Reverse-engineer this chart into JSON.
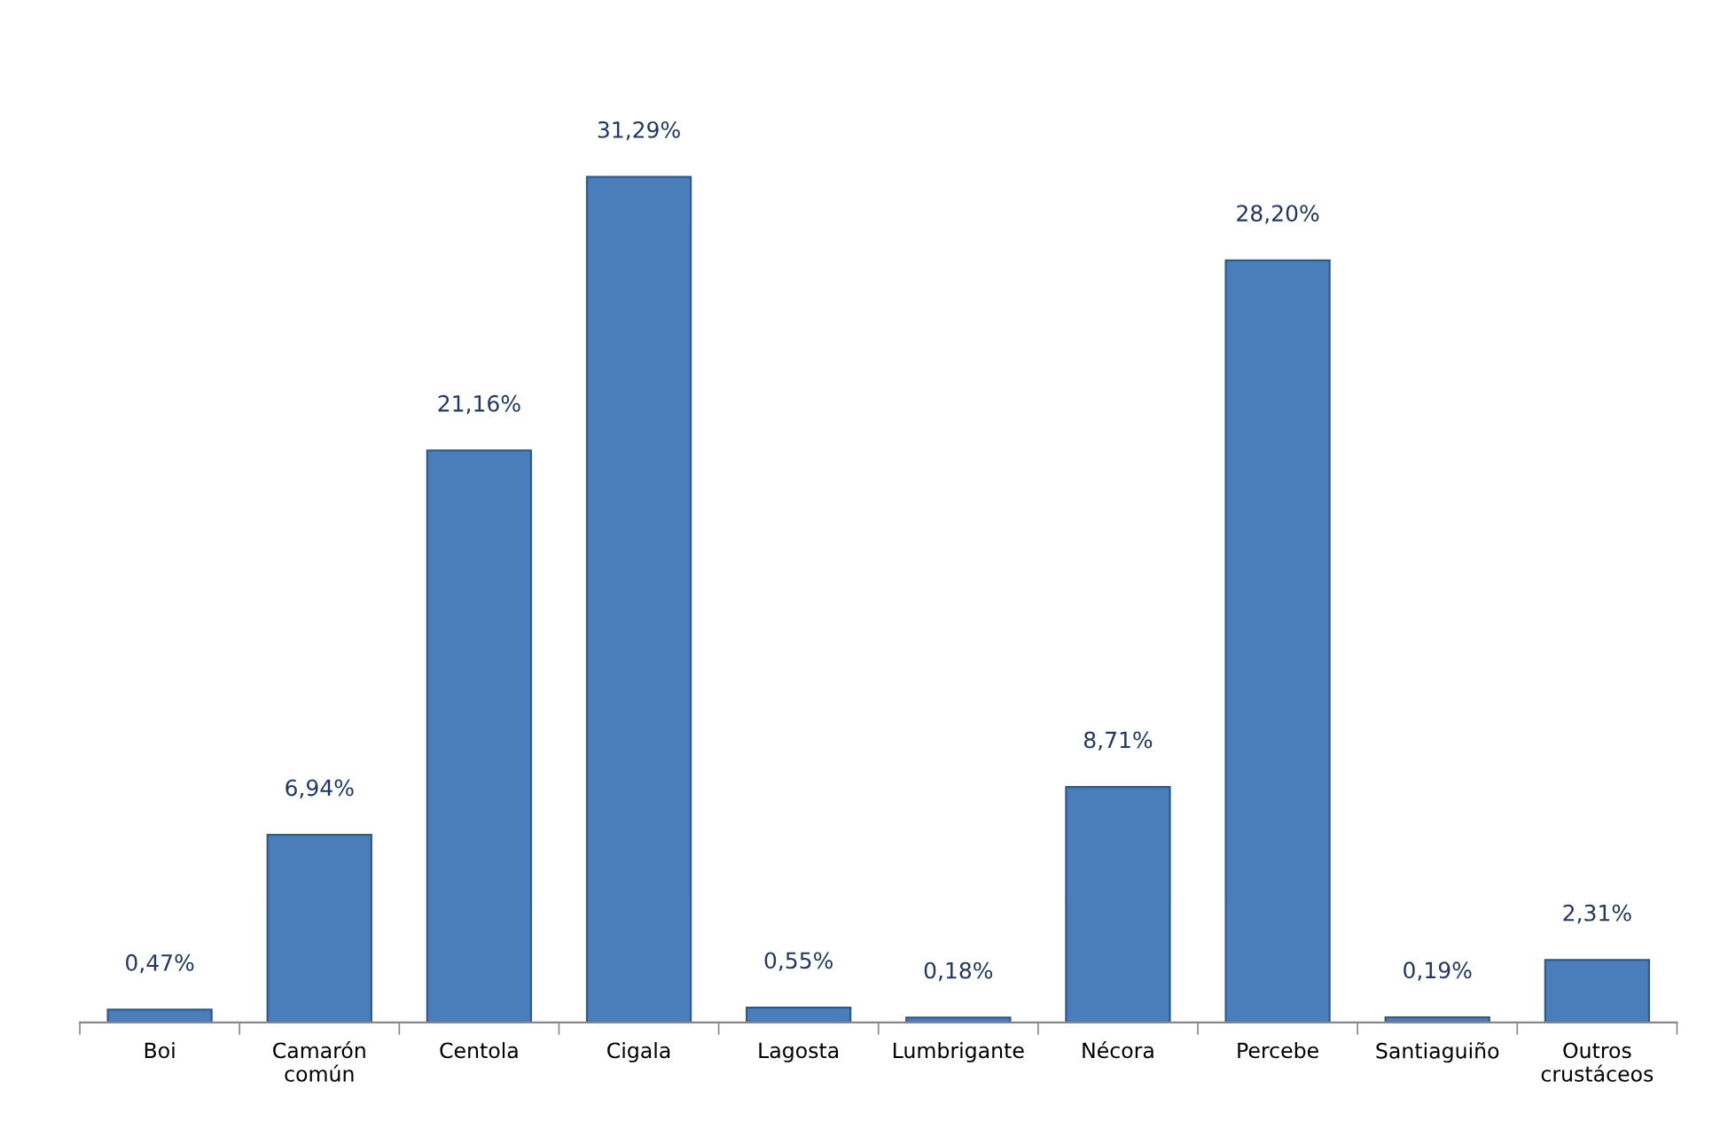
{
  "chart_data": {
    "type": "bar",
    "categories": [
      "Boi",
      "Camarón\ncomún",
      "Centola",
      "Cigala",
      "Lagosta",
      "Lumbrigante",
      "Nécora",
      "Percebe",
      "Santiaguiño",
      "Outros\ncrustáceos"
    ],
    "values": [
      0.47,
      6.94,
      21.16,
      31.29,
      0.55,
      0.18,
      8.71,
      28.2,
      0.19,
      2.31
    ],
    "value_labels": [
      "0,47%",
      "6,94%",
      "21,16%",
      "31,29%",
      "0,55%",
      "0,18%",
      "8,71%",
      "28,20%",
      "0,19%",
      "2,31%"
    ],
    "color": "#4a7ebb",
    "tick_labels": "x"
  }
}
